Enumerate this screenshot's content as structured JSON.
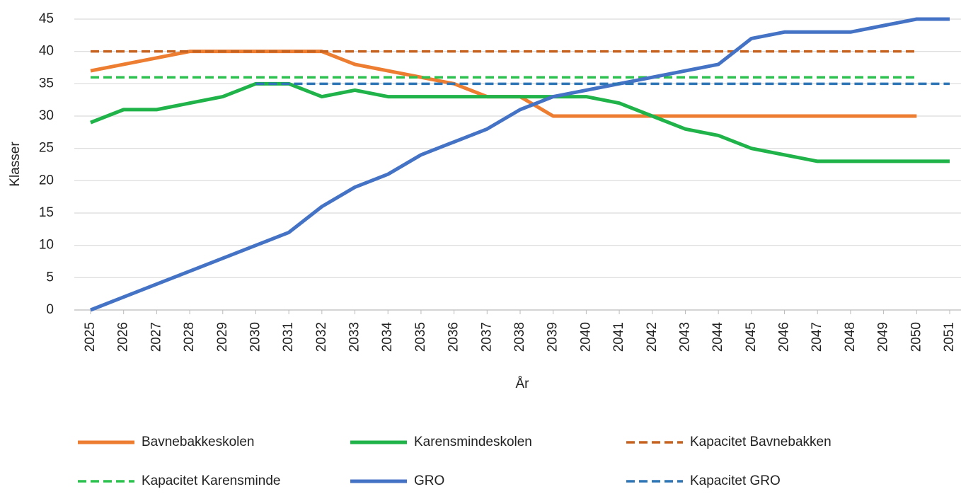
{
  "chart_data": {
    "type": "line",
    "x_label": "År",
    "y_label": "Klasser",
    "categories": [
      "2025",
      "2026",
      "2027",
      "2028",
      "2029",
      "2030",
      "2031",
      "2032",
      "2033",
      "2034",
      "2035",
      "2036",
      "2037",
      "2038",
      "2039",
      "2040",
      "2041",
      "2042",
      "2043",
      "2044",
      "2045",
      "2046",
      "2047",
      "2048",
      "2049",
      "2050",
      "2051"
    ],
    "ylim": [
      0,
      45
    ],
    "yticks": [
      0,
      5,
      10,
      15,
      20,
      25,
      30,
      35,
      40,
      45
    ],
    "grid": true,
    "legend": "bottom",
    "series": [
      {
        "name": "Bavnebakkeskolen",
        "color": "#ed7d31",
        "dash": false,
        "values": [
          37,
          38,
          39,
          40,
          40,
          40,
          40,
          40,
          38,
          37,
          36,
          35,
          33,
          33,
          30,
          30,
          30,
          30,
          30,
          30,
          30,
          30,
          30,
          30,
          30,
          30,
          null
        ]
      },
      {
        "name": "Karensmindeskolen",
        "color": "#1fb34a",
        "dash": false,
        "values": [
          29,
          31,
          31,
          32,
          33,
          35,
          35,
          33,
          34,
          33,
          33,
          33,
          33,
          33,
          33,
          33,
          32,
          30,
          28,
          27,
          25,
          24,
          23,
          23,
          23,
          23,
          23
        ]
      },
      {
        "name": "Kapacitet Bavnebakken",
        "color": "#c5621f",
        "dash": true,
        "values": [
          40,
          40,
          40,
          40,
          40,
          40,
          40,
          40,
          40,
          40,
          40,
          40,
          40,
          40,
          40,
          40,
          40,
          40,
          40,
          40,
          40,
          40,
          40,
          40,
          40,
          40,
          null
        ]
      },
      {
        "name": "Kapacitet Karensminde",
        "color": "#2cc04f",
        "dash": true,
        "values": [
          36,
          36,
          36,
          36,
          36,
          36,
          36,
          36,
          36,
          36,
          36,
          36,
          36,
          36,
          36,
          36,
          36,
          36,
          36,
          36,
          36,
          36,
          36,
          36,
          36,
          36,
          null
        ]
      },
      {
        "name": "GRO",
        "color": "#4472c4",
        "dash": false,
        "values": [
          0,
          2,
          4,
          6,
          8,
          10,
          12,
          16,
          19,
          21,
          24,
          26,
          28,
          31,
          33,
          34,
          35,
          36,
          37,
          38,
          42,
          43,
          43,
          43,
          44,
          45,
          45
        ]
      },
      {
        "name": "Kapacitet GRO",
        "color": "#2e75b6",
        "dash": true,
        "values": [
          null,
          null,
          null,
          null,
          null,
          35,
          35,
          35,
          35,
          35,
          35,
          35,
          35,
          35,
          35,
          35,
          35,
          35,
          35,
          35,
          35,
          35,
          35,
          35,
          35,
          35,
          35
        ]
      }
    ]
  }
}
